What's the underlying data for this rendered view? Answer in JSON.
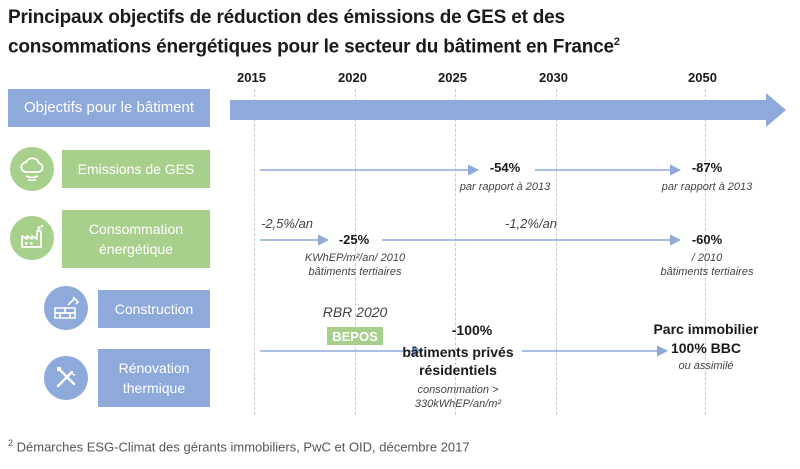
{
  "title": {
    "line1": "Principaux objectifs de réduction des émissions de GES et des",
    "line2": "consommations énergétiques pour le secteur du bâtiment en France",
    "sup": "2"
  },
  "years": [
    "2015",
    "2020",
    "2025",
    "2030",
    "2050"
  ],
  "rows": {
    "objectifs": "Objectifs pour le bâtiment",
    "emissions": "Emissions de GES",
    "consommation": [
      "Consommation",
      "énergétique"
    ],
    "construction": "Construction",
    "renovation": [
      "Rénovation",
      "thermique"
    ]
  },
  "icons": {
    "emissions": "cloud-icon",
    "consommation": "factory-icon",
    "construction": "bricks-trowel-icon",
    "renovation": "tools-icon"
  },
  "emissions": {
    "target_2025": "-54%",
    "note_2025": "par rapport à 2013",
    "target_2050": "-87%",
    "note_2050": "par rapport à 2013"
  },
  "consommation": {
    "rate_early": "-2,5%/an",
    "target_2020": "-25%",
    "note_2020": [
      "KWhEP/m²/an/ 2010",
      "bâtiments tertiaires"
    ],
    "rate_late": "-1,2%/an",
    "target_2050": "-60%",
    "note_2050": [
      "/ 2010",
      "bâtiments tertiaires"
    ]
  },
  "construction": {
    "rbr": "RBR 2020",
    "bepos": "BEPOS"
  },
  "renovation": {
    "target": "-100%",
    "subject": [
      "bâtiments privés",
      "résidentiels"
    ],
    "note": [
      "consommation >",
      "330kWhEP/an/m²"
    ],
    "final": [
      "Parc immobilier",
      "100% BBC"
    ],
    "final_note": "ou assimilé"
  },
  "footnote": {
    "sup": "2",
    "text": " Démarches ESG-Climat des gérants immobiliers, PwC et OID, décembre 2017"
  },
  "colors": {
    "green": "#a8d08d",
    "blue": "#8eaadb",
    "arrow": "#8eaadb"
  }
}
